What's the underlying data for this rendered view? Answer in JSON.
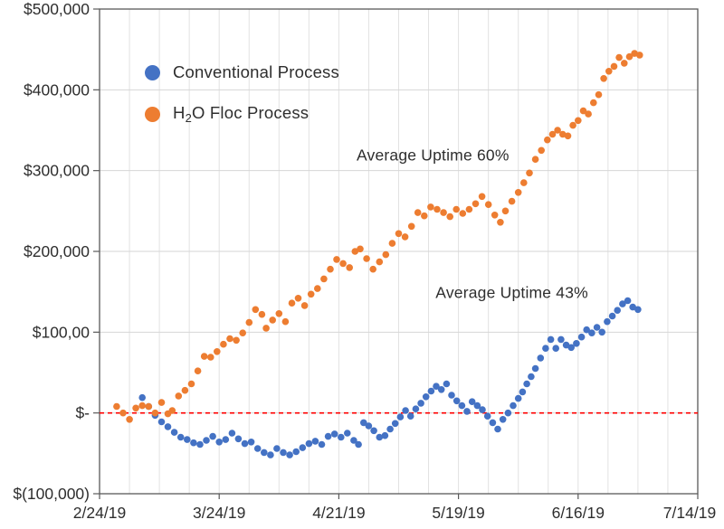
{
  "legend": {
    "conventional_label": "Conventional Process",
    "h2o_prefix": "H",
    "h2o_sub": "2",
    "h2o_suffix": "O Floc Process"
  },
  "chart_data": {
    "type": "scatter",
    "title": "",
    "legend_position": "inside-top-left",
    "grid": true,
    "x_axis": {
      "tick_labels": [
        "2/24/19",
        "3/24/19",
        "4/21/19",
        "5/19/19",
        "6/16/19",
        "7/14/19"
      ],
      "tick_days": [
        0,
        28,
        56,
        84,
        112,
        140
      ],
      "range_days": [
        0,
        140
      ],
      "gridline_every_days": 7
    },
    "y_axis": {
      "tick_labels": [
        "$500,000",
        "$400,000",
        "$300,000",
        "$200,000",
        "$100,00",
        "$-",
        "$(100,000)"
      ],
      "tick_values": [
        500000,
        400000,
        300000,
        200000,
        100000,
        0,
        -100000
      ],
      "range": [
        -100000,
        500000
      ]
    },
    "zero_line": {
      "value": 0,
      "color": "#FF0000",
      "style": "dashed"
    },
    "annotations": [
      {
        "text": "Average Uptime 60%",
        "day": 78,
        "value": 319000
      },
      {
        "text": "Average Uptime 43%",
        "day": 96.5,
        "value": 149000
      }
    ],
    "series": [
      {
        "id": "conventional",
        "name": "Conventional Process",
        "color": "#4472C4",
        "points": [
          [
            10,
            19000
          ],
          [
            11.5,
            8000
          ],
          [
            13,
            -3000
          ],
          [
            14.5,
            -11000
          ],
          [
            16,
            -17000
          ],
          [
            17.5,
            -24000
          ],
          [
            19,
            -30000
          ],
          [
            20.5,
            -33000
          ],
          [
            22,
            -37000
          ],
          [
            23.5,
            -39000
          ],
          [
            25,
            -34000
          ],
          [
            26.5,
            -29000
          ],
          [
            28,
            -36000
          ],
          [
            29.5,
            -33000
          ],
          [
            31,
            -25000
          ],
          [
            32.5,
            -32000
          ],
          [
            34,
            -38000
          ],
          [
            35.5,
            -36000
          ],
          [
            37,
            -44000
          ],
          [
            38.5,
            -49000
          ],
          [
            40,
            -52000
          ],
          [
            41.5,
            -44000
          ],
          [
            43,
            -49000
          ],
          [
            44.5,
            -52000
          ],
          [
            46,
            -48000
          ],
          [
            47.5,
            -43000
          ],
          [
            49,
            -38000
          ],
          [
            50.5,
            -35000
          ],
          [
            52,
            -39000
          ],
          [
            53.5,
            -29000
          ],
          [
            55,
            -26000
          ],
          [
            56.5,
            -30000
          ],
          [
            58,
            -25000
          ],
          [
            59.5,
            -34000
          ],
          [
            60.6,
            -39000
          ],
          [
            61.8,
            -12000
          ],
          [
            63,
            -16000
          ],
          [
            64.2,
            -22000
          ],
          [
            65.5,
            -30000
          ],
          [
            66.8,
            -28000
          ],
          [
            68,
            -20000
          ],
          [
            69.2,
            -13000
          ],
          [
            70.4,
            -5000
          ],
          [
            71.6,
            3000
          ],
          [
            72.8,
            -4000
          ],
          [
            74,
            5000
          ],
          [
            75.2,
            12000
          ],
          [
            76.4,
            20000
          ],
          [
            77.6,
            27000
          ],
          [
            78.8,
            33000
          ],
          [
            80,
            29000
          ],
          [
            81.2,
            36000
          ],
          [
            82.4,
            22000
          ],
          [
            83.6,
            15000
          ],
          [
            84.8,
            9000
          ],
          [
            86,
            2000
          ],
          [
            87.2,
            14000
          ],
          [
            88.4,
            9000
          ],
          [
            89.6,
            4000
          ],
          [
            90.8,
            -4000
          ],
          [
            92,
            -12000
          ],
          [
            93.2,
            -20000
          ],
          [
            94.4,
            -8000
          ],
          [
            95.6,
            0
          ],
          [
            96.8,
            9000
          ],
          [
            98,
            18000
          ],
          [
            99,
            26000
          ],
          [
            100,
            36000
          ],
          [
            101,
            45000
          ],
          [
            102,
            55000
          ],
          [
            103.2,
            68000
          ],
          [
            104.4,
            80000
          ],
          [
            105.6,
            91000
          ],
          [
            106.8,
            80000
          ],
          [
            108,
            91000
          ],
          [
            109.2,
            84000
          ],
          [
            110.4,
            81000
          ],
          [
            111.6,
            86000
          ],
          [
            112.8,
            94000
          ],
          [
            114,
            103000
          ],
          [
            115.2,
            99000
          ],
          [
            116.4,
            106000
          ],
          [
            117.6,
            100000
          ],
          [
            118.8,
            113000
          ],
          [
            120,
            120000
          ],
          [
            121.2,
            127000
          ],
          [
            122.4,
            135000
          ],
          [
            123.6,
            139000
          ],
          [
            124.8,
            131000
          ],
          [
            126,
            128000
          ]
        ]
      },
      {
        "id": "h2o-floc",
        "name": "H2O Floc Process",
        "color": "#ED7D31",
        "points": [
          [
            4,
            8000
          ],
          [
            5.5,
            0
          ],
          [
            7,
            -8000
          ],
          [
            8.5,
            6000
          ],
          [
            10,
            9000
          ],
          [
            11.5,
            8000
          ],
          [
            13,
            0
          ],
          [
            14.5,
            13000
          ],
          [
            16,
            -1000
          ],
          [
            17,
            3000
          ],
          [
            18.5,
            21000
          ],
          [
            20,
            28000
          ],
          [
            21.5,
            36000
          ],
          [
            23,
            52000
          ],
          [
            24.5,
            70000
          ],
          [
            26,
            69000
          ],
          [
            27.5,
            76000
          ],
          [
            29,
            85000
          ],
          [
            30.5,
            92000
          ],
          [
            32,
            90000
          ],
          [
            33.5,
            99000
          ],
          [
            35,
            112000
          ],
          [
            36.5,
            128000
          ],
          [
            38,
            122000
          ],
          [
            39,
            105000
          ],
          [
            40.5,
            115000
          ],
          [
            42,
            123000
          ],
          [
            43.5,
            113000
          ],
          [
            45,
            136000
          ],
          [
            46.5,
            142000
          ],
          [
            48,
            133000
          ],
          [
            49.5,
            147000
          ],
          [
            51,
            154000
          ],
          [
            52.5,
            166000
          ],
          [
            54,
            178000
          ],
          [
            55.5,
            190000
          ],
          [
            57,
            185000
          ],
          [
            58.5,
            180000
          ],
          [
            59.8,
            200000
          ],
          [
            61,
            203000
          ],
          [
            62.5,
            191000
          ],
          [
            64,
            178000
          ],
          [
            65.5,
            187000
          ],
          [
            67,
            196000
          ],
          [
            68.5,
            210000
          ],
          [
            70,
            222000
          ],
          [
            71.5,
            218000
          ],
          [
            73,
            231000
          ],
          [
            74.5,
            248000
          ],
          [
            76,
            244000
          ],
          [
            77.5,
            255000
          ],
          [
            79,
            252000
          ],
          [
            80.5,
            248000
          ],
          [
            82,
            243000
          ],
          [
            83.5,
            252000
          ],
          [
            85,
            247000
          ],
          [
            86.5,
            252000
          ],
          [
            88,
            259000
          ],
          [
            89.5,
            268000
          ],
          [
            91,
            258000
          ],
          [
            92.5,
            245000
          ],
          [
            93.8,
            236000
          ],
          [
            95,
            250000
          ],
          [
            96.5,
            262000
          ],
          [
            98,
            273000
          ],
          [
            99.3,
            285000
          ],
          [
            100.6,
            297000
          ],
          [
            102,
            314000
          ],
          [
            103.4,
            325000
          ],
          [
            104.8,
            338000
          ],
          [
            106,
            345000
          ],
          [
            107.2,
            350000
          ],
          [
            108.4,
            345000
          ],
          [
            109.6,
            343000
          ],
          [
            110.8,
            356000
          ],
          [
            112,
            362000
          ],
          [
            113.2,
            374000
          ],
          [
            114.4,
            370000
          ],
          [
            115.6,
            384000
          ],
          [
            116.8,
            394000
          ],
          [
            118,
            414000
          ],
          [
            119.2,
            423000
          ],
          [
            120.4,
            429000
          ],
          [
            121.6,
            440000
          ],
          [
            122.8,
            433000
          ],
          [
            124,
            441000
          ],
          [
            125.2,
            445000
          ],
          [
            126.4,
            443000
          ]
        ]
      }
    ]
  }
}
